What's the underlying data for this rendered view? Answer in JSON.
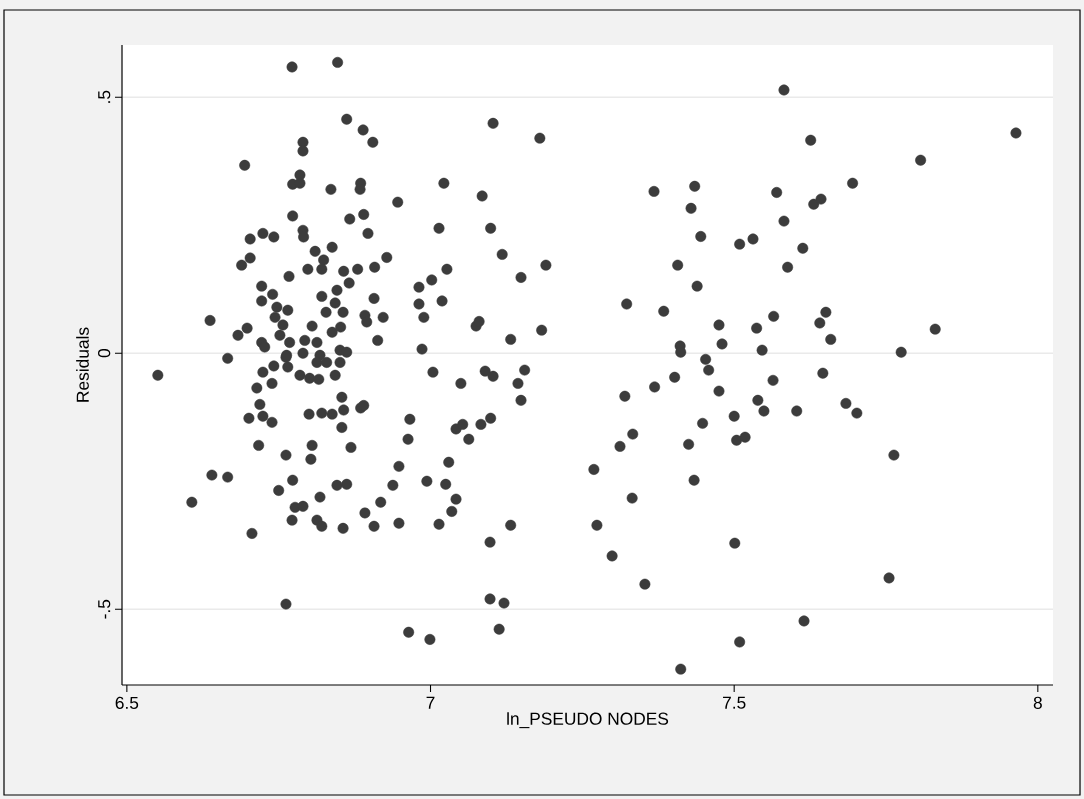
{
  "chart_data": {
    "type": "scatter",
    "xlabel": "ln_PSEUDO NODES",
    "ylabel": "Residuals",
    "color": "#3c3c3c",
    "marker": "circle",
    "grid": "y",
    "xlim": [
      6.492,
      8.025
    ],
    "ylim": [
      -0.648,
      0.602
    ],
    "xticks": [
      6.5,
      7,
      7.5,
      8
    ],
    "yticks": [
      {
        "value": -0.5,
        "label": "-.5"
      },
      {
        "value": 0,
        "label": "0"
      },
      {
        "value": 0.5,
        "label": ".5"
      }
    ],
    "x": [
      6.772,
      6.847,
      6.862,
      6.889,
      6.905,
      6.79,
      6.79,
      6.694,
      6.785,
      6.773,
      6.785,
      6.836,
      6.885,
      6.884,
      6.946,
      6.773,
      6.867,
      6.89,
      6.79,
      6.791,
      6.897,
      6.703,
      6.724,
      6.742,
      6.81,
      6.838,
      6.824,
      6.821,
      6.703,
      6.689,
      6.767,
      6.798,
      6.857,
      6.866,
      6.88,
      6.908,
      6.928,
      6.722,
      6.74,
      6.722,
      6.846,
      6.821,
      6.747,
      6.765,
      6.843,
      6.828,
      6.856,
      6.907,
      6.892,
      6.895,
      6.922,
      6.744,
      6.637,
      6.698,
      6.683,
      6.757,
      6.805,
      6.838,
      6.852,
      6.722,
      6.727,
      6.752,
      6.768,
      6.793,
      6.813,
      6.913,
      6.851,
      6.862,
      6.79,
      6.763,
      6.818,
      6.666,
      6.981,
      7.002,
      6.981,
      6.989,
      6.986,
      6.551,
      6.724,
      6.742,
      6.739,
      6.714,
      6.762,
      6.765,
      6.785,
      6.801,
      6.816,
      6.843,
      6.813,
      6.829,
      6.851,
      7.004,
      6.854,
      6.857,
      6.854,
      6.885,
      6.89,
      6.719,
      6.701,
      6.724,
      6.739,
      6.8,
      6.821,
      6.838,
      6.966,
      6.963,
      6.717,
      6.762,
      6.805,
      6.803,
      6.869,
      6.948,
      6.64,
      6.666,
      6.938,
      6.994,
      6.607,
      6.773,
      6.75,
      6.818,
      6.846,
      6.862,
      6.777,
      6.79,
      6.772,
      6.813,
      6.821,
      6.856,
      6.892,
      6.918,
      6.907,
      6.948,
      7.014,
      6.706,
      6.762,
      6.964,
      6.999,
      7.103,
      7.18,
      7.022,
      7.085,
      7.014,
      7.099,
      7.118,
      7.027,
      7.149,
      7.19,
      7.019,
      7.075,
      7.08,
      7.132,
      7.183,
      7.05,
      7.09,
      7.103,
      7.155,
      7.144,
      7.149,
      7.042,
      7.053,
      7.063,
      7.083,
      7.099,
      7.03,
      7.025,
      7.042,
      7.035,
      7.098,
      7.132,
      7.098,
      7.121,
      7.113,
      7.368,
      7.435,
      7.429,
      7.445,
      7.509,
      7.407,
      7.439,
      7.323,
      7.384,
      7.475,
      7.48,
      7.411,
      7.412,
      7.453,
      7.458,
      7.402,
      7.369,
      7.32,
      7.475,
      7.5,
      7.448,
      7.504,
      7.518,
      7.425,
      7.333,
      7.312,
      7.269,
      7.434,
      7.332,
      7.274,
      7.501,
      7.299,
      7.353,
      7.412,
      7.509,
      7.582,
      7.626,
      7.964,
      7.807,
      7.695,
      7.57,
      7.631,
      7.643,
      7.582,
      7.531,
      7.613,
      7.588,
      7.565,
      7.537,
      7.651,
      7.641,
      7.659,
      7.831,
      7.546,
      7.775,
      7.646,
      7.564,
      7.539,
      7.549,
      7.603,
      7.684,
      7.702,
      7.763,
      7.755,
      7.615
    ],
    "values": [
      0.559,
      0.568,
      0.457,
      0.436,
      0.412,
      0.412,
      0.395,
      0.367,
      0.348,
      0.33,
      0.332,
      0.32,
      0.332,
      0.32,
      0.295,
      0.268,
      0.262,
      0.271,
      0.24,
      0.227,
      0.234,
      0.223,
      0.234,
      0.227,
      0.199,
      0.207,
      0.182,
      0.164,
      0.186,
      0.172,
      0.15,
      0.164,
      0.16,
      0.137,
      0.164,
      0.168,
      0.187,
      0.131,
      0.115,
      0.102,
      0.123,
      0.111,
      0.09,
      0.084,
      0.098,
      0.08,
      0.08,
      0.107,
      0.074,
      0.061,
      0.07,
      0.07,
      0.064,
      0.049,
      0.035,
      0.055,
      0.053,
      0.041,
      0.051,
      0.021,
      0.012,
      0.035,
      0.021,
      0.025,
      0.021,
      0.025,
      0.006,
      0.002,
      0,
      -0.004,
      -0.004,
      -0.01,
      0.129,
      0.143,
      0.096,
      0.07,
      0.008,
      -0.043,
      -0.037,
      -0.025,
      -0.059,
      -0.068,
      -0.008,
      -0.027,
      -0.043,
      -0.049,
      -0.051,
      -0.043,
      -0.018,
      -0.018,
      -0.018,
      -0.037,
      -0.086,
      -0.111,
      -0.145,
      -0.107,
      -0.102,
      -0.1,
      -0.127,
      -0.123,
      -0.135,
      -0.119,
      -0.117,
      -0.119,
      -0.129,
      -0.168,
      -0.18,
      -0.199,
      -0.18,
      -0.207,
      -0.184,
      -0.221,
      -0.238,
      -0.242,
      -0.258,
      -0.25,
      -0.291,
      -0.248,
      -0.268,
      -0.281,
      -0.258,
      -0.256,
      -0.301,
      -0.299,
      -0.326,
      -0.326,
      -0.338,
      -0.342,
      -0.312,
      -0.291,
      -0.338,
      -0.332,
      -0.334,
      -0.352,
      -0.49,
      -0.545,
      -0.559,
      0.449,
      0.42,
      0.332,
      0.307,
      0.244,
      0.244,
      0.193,
      0.164,
      0.148,
      0.172,
      0.102,
      0.053,
      0.062,
      0.027,
      0.045,
      -0.059,
      -0.035,
      -0.045,
      -0.033,
      -0.059,
      -0.092,
      -0.148,
      -0.139,
      -0.168,
      -0.139,
      -0.127,
      -0.213,
      -0.256,
      -0.285,
      -0.309,
      -0.369,
      -0.336,
      -0.48,
      -0.488,
      -0.539,
      0.316,
      0.326,
      0.283,
      0.228,
      0.213,
      0.172,
      0.131,
      0.096,
      0.082,
      0.055,
      0.018,
      0.014,
      0.002,
      -0.012,
      -0.033,
      -0.047,
      -0.066,
      -0.084,
      -0.074,
      -0.123,
      -0.137,
      -0.17,
      -0.164,
      -0.178,
      -0.158,
      -0.182,
      -0.227,
      -0.248,
      -0.283,
      -0.336,
      -0.371,
      -0.396,
      -0.451,
      -0.617,
      -0.564,
      0.514,
      0.416,
      0.43,
      0.377,
      0.332,
      0.314,
      0.291,
      0.301,
      0.258,
      0.223,
      0.205,
      0.168,
      0.072,
      0.049,
      0.08,
      0.059,
      0.027,
      0.047,
      0.006,
      0.002,
      -0.039,
      -0.053,
      -0.092,
      -0.113,
      -0.113,
      -0.098,
      -0.117,
      -0.199,
      -0.439,
      -0.523
    ]
  }
}
